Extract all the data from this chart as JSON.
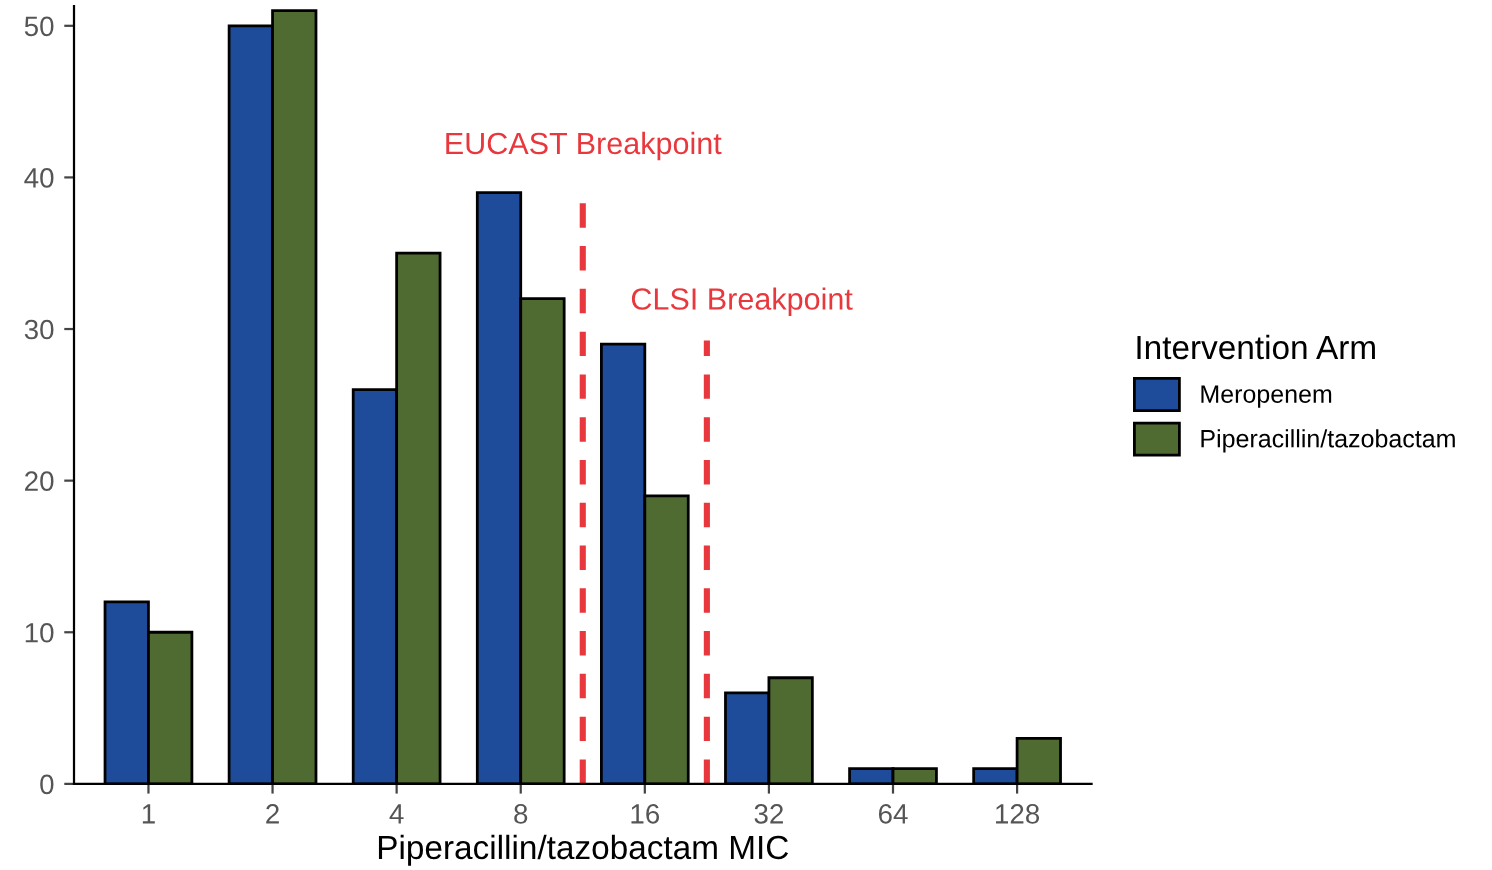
{
  "chart_data": {
    "type": "bar",
    "xlabel": "Piperacillin/tazobactam MIC",
    "legend_title": "Intervention Arm",
    "categories": [
      "1",
      "2",
      "4",
      "8",
      "16",
      "32",
      "64",
      "128"
    ],
    "series": [
      {
        "name": "Meropenem",
        "color": "#1f4c9a",
        "values": [
          12,
          50,
          26,
          39,
          29,
          6,
          1,
          1
        ]
      },
      {
        "name": "Piperacillin/tazobactam",
        "color": "#4f6b32",
        "values": [
          10,
          51,
          35,
          32,
          19,
          7,
          1,
          3
        ]
      }
    ],
    "ylim": [
      0,
      51.3
    ],
    "yticks": [
      0,
      10,
      20,
      30,
      40,
      50
    ],
    "grid": false,
    "legend": "right",
    "annotations": [
      "EUCAST Breakpoint",
      "CLSI Breakpoint"
    ]
  }
}
